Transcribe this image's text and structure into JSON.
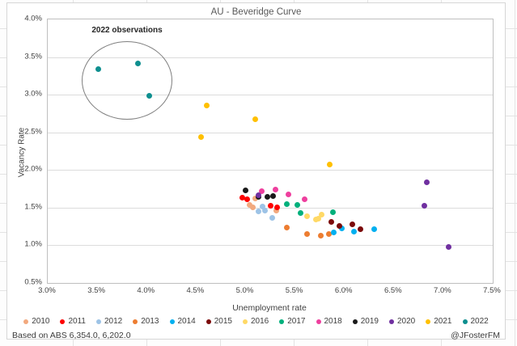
{
  "footer": {
    "source": "Based on ABS 6,354.0, 6,202.0",
    "credit": "@JFosterFM"
  },
  "chart_data": {
    "type": "scatter",
    "title": "AU - Beveridge Curve",
    "xlabel": "Unemployment rate",
    "ylabel": "Vacancy Rate",
    "xlim": [
      3.0,
      7.5
    ],
    "ylim": [
      0.5,
      4.0
    ],
    "x_ticks": [
      3.0,
      3.5,
      4.0,
      4.5,
      5.0,
      5.5,
      6.0,
      6.5,
      7.0,
      7.5
    ],
    "y_ticks": [
      0.5,
      1.0,
      1.5,
      2.0,
      2.5,
      3.0,
      3.5,
      4.0
    ],
    "tick_format": "percent_1dp",
    "grid": "horizontal-only",
    "legend_position": "bottom",
    "annotation": {
      "text": "2022 observations",
      "target": "2022 points circled top-left"
    },
    "series": [
      {
        "name": "2010",
        "color": "#F2A97E",
        "points": [
          [
            5.04,
            1.54
          ],
          [
            5.07,
            1.5
          ],
          [
            5.1,
            1.62
          ],
          [
            5.31,
            1.46
          ]
        ]
      },
      {
        "name": "2011",
        "color": "#FE0000",
        "points": [
          [
            4.97,
            1.63
          ],
          [
            5.02,
            1.61
          ],
          [
            5.25,
            1.53
          ],
          [
            5.32,
            1.5
          ]
        ]
      },
      {
        "name": "2012",
        "color": "#9DC3E6",
        "points": [
          [
            5.13,
            1.45
          ],
          [
            5.17,
            1.51
          ],
          [
            5.2,
            1.46
          ],
          [
            5.27,
            1.36
          ]
        ]
      },
      {
        "name": "2013",
        "color": "#ED7D31",
        "points": [
          [
            5.42,
            1.24
          ],
          [
            5.62,
            1.15
          ],
          [
            5.76,
            1.13
          ],
          [
            5.84,
            1.15
          ]
        ]
      },
      {
        "name": "2014",
        "color": "#00B0F0",
        "points": [
          [
            5.89,
            1.17
          ],
          [
            5.97,
            1.22
          ],
          [
            6.1,
            1.18
          ],
          [
            6.3,
            1.21
          ]
        ]
      },
      {
        "name": "2015",
        "color": "#7B0A0A",
        "points": [
          [
            5.87,
            1.31
          ],
          [
            5.95,
            1.26
          ],
          [
            6.08,
            1.28
          ],
          [
            6.16,
            1.21
          ]
        ]
      },
      {
        "name": "2016",
        "color": "#FFD966",
        "points": [
          [
            5.62,
            1.39
          ],
          [
            5.71,
            1.34
          ],
          [
            5.74,
            1.35
          ],
          [
            5.77,
            1.41
          ]
        ]
      },
      {
        "name": "2017",
        "color": "#00B07C",
        "points": [
          [
            5.42,
            1.55
          ],
          [
            5.52,
            1.54
          ],
          [
            5.56,
            1.43
          ],
          [
            5.88,
            1.44
          ]
        ]
      },
      {
        "name": "2018",
        "color": "#EE3F9E",
        "points": [
          [
            5.16,
            1.72
          ],
          [
            5.3,
            1.74
          ],
          [
            5.43,
            1.68
          ],
          [
            5.6,
            1.61
          ]
        ]
      },
      {
        "name": "2019",
        "color": "#1A1A1A",
        "points": [
          [
            5.0,
            1.73
          ],
          [
            5.13,
            1.64
          ],
          [
            5.22,
            1.64
          ],
          [
            5.28,
            1.65
          ]
        ]
      },
      {
        "name": "2020",
        "color": "#7030A0",
        "points": [
          [
            5.13,
            1.66
          ],
          [
            6.81,
            1.52
          ],
          [
            6.83,
            1.84
          ],
          [
            7.05,
            0.98
          ]
        ]
      },
      {
        "name": "2021",
        "color": "#FFC000",
        "points": [
          [
            4.55,
            2.44
          ],
          [
            4.61,
            2.86
          ],
          [
            5.1,
            2.67
          ],
          [
            5.85,
            2.07
          ]
        ]
      },
      {
        "name": "2022",
        "color": "#0E8F8F",
        "points": [
          [
            3.51,
            3.34
          ],
          [
            3.91,
            3.41
          ],
          [
            4.03,
            2.99
          ]
        ]
      }
    ]
  }
}
